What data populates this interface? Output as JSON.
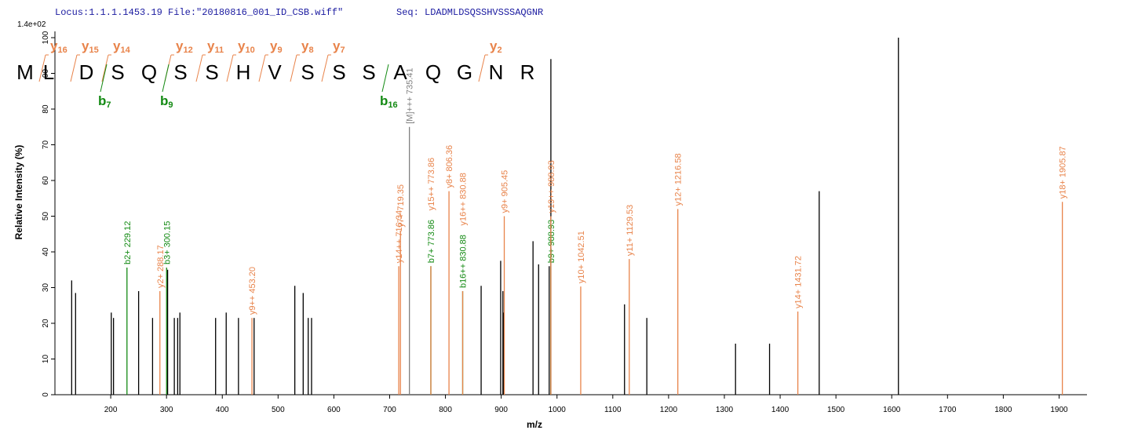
{
  "chart_data": {
    "type": "spectrum",
    "header": "Locus:1.1.1.1453.19 File:\"20180816_001_ID_CSB.wiff\"",
    "subtitle": "Seq: LDADMLDSQSSHVSSSAQGNR",
    "scale_label": "1.4e+02",
    "x_label": "m/z",
    "y_label": "Relative  Intensity (%)",
    "xlim": [
      100,
      1950
    ],
    "xticks": [
      200,
      300,
      400,
      500,
      600,
      700,
      800,
      900,
      1000,
      1100,
      1200,
      1300,
      1400,
      1500,
      1600,
      1700,
      1800,
      1900
    ],
    "ylim": [
      0,
      100
    ],
    "yticks": [
      0,
      10,
      20,
      30,
      40,
      50,
      60,
      70,
      80,
      90,
      100
    ],
    "x": [
      130,
      137,
      201,
      205,
      229.12,
      250,
      275,
      288.17,
      300.15,
      302,
      314,
      320,
      324,
      388,
      407,
      429,
      453.2,
      457,
      530,
      545,
      554,
      560,
      716.34,
      719.35,
      735.41,
      773.86,
      773.86,
      806.36,
      830.88,
      830.88,
      864,
      899,
      903,
      904,
      905.45,
      957,
      967,
      986,
      989,
      988.93,
      988.93,
      1042.51,
      1121,
      1129.53,
      1161,
      1216.58,
      1320,
      1381,
      1431.72,
      1470,
      1612,
      1905.87
    ],
    "values": [
      32,
      28.5,
      23,
      21.5,
      35.6,
      29,
      21.5,
      29,
      35.6,
      35,
      21.5,
      21.5,
      23,
      21.5,
      23,
      21.5,
      21.5,
      21.5,
      30.5,
      28.5,
      21.5,
      21.5,
      36,
      46,
      75,
      36,
      36,
      57,
      29,
      29,
      30.5,
      37.5,
      29,
      23,
      50,
      43,
      36.5,
      36,
      94,
      36,
      50,
      30.3,
      25.3,
      38,
      21.5,
      52,
      14.3,
      14.3,
      23.3,
      57,
      100,
      54
    ],
    "colors": [
      "#000000",
      "#000000",
      "#000000",
      "#000000",
      "#138a13",
      "#000000",
      "#000000",
      "#e8834a",
      "#138a13",
      "#000000",
      "#000000",
      "#000000",
      "#000000",
      "#000000",
      "#000000",
      "#000000",
      "#e8834a",
      "#000000",
      "#000000",
      "#000000",
      "#000000",
      "#000000",
      "#e8834a",
      "#e8834a",
      "#808080",
      "#138a13",
      "#e8834a",
      "#e8834a",
      "#138a13",
      "#e8834a",
      "#000000",
      "#000000",
      "#000000",
      "#000000",
      "#e8834a",
      "#000000",
      "#000000",
      "#000000",
      "#000000",
      "#138a13",
      "#e8834a",
      "#e8834a",
      "#000000",
      "#e8834a",
      "#000000",
      "#e8834a",
      "#000000",
      "#000000",
      "#e8834a",
      "#000000",
      "#000000",
      "#e8834a"
    ],
    "peak_labels": [
      null,
      null,
      null,
      null,
      "b2+ 229.12",
      null,
      null,
      "y2+ 288.17",
      "b3+ 300.15",
      null,
      null,
      null,
      null,
      null,
      null,
      null,
      "y9++ 453.20",
      null,
      null,
      null,
      null,
      null,
      "y14++ 716.34",
      "y7+ 719.35",
      "[M]+++ 735.41",
      "b7+ 773.86",
      "y15++ 773.86",
      "y8+ 806.36",
      "b16++ 830.88",
      "y16++ 830.88",
      null,
      null,
      null,
      null,
      "y9+ 905.45",
      null,
      null,
      null,
      null,
      "b9+ 988.93",
      "y19++ 988.93",
      "y10+ 1042.51",
      null,
      "y11+ 1129.53",
      null,
      "y12+ 1216.58",
      null,
      null,
      "y14+ 1431.72",
      null,
      null,
      "y18+ 1905.87"
    ],
    "sequence": [
      "M",
      "L",
      "D",
      "S",
      "Q",
      "S",
      "S",
      "H",
      "V",
      "S",
      "S",
      "S",
      "A",
      "Q",
      "G",
      "N",
      "R"
    ],
    "y_ions": [
      {
        "ion": "y",
        "num": "16"
      },
      {
        "ion": "y",
        "num": "15"
      },
      {
        "ion": "y",
        "num": "14"
      },
      {
        "ion": "y",
        "num": "12"
      },
      {
        "ion": "y",
        "num": "11"
      },
      {
        "ion": "y",
        "num": "10"
      },
      {
        "ion": "y",
        "num": "9"
      },
      {
        "ion": "y",
        "num": "8"
      },
      {
        "ion": "y",
        "num": "7"
      },
      {
        "ion": "y",
        "num": "2"
      }
    ],
    "b_ions": [
      {
        "ion": "b",
        "num": "7"
      },
      {
        "ion": "b",
        "num": "9"
      },
      {
        "ion": "b",
        "num": "16"
      }
    ]
  }
}
